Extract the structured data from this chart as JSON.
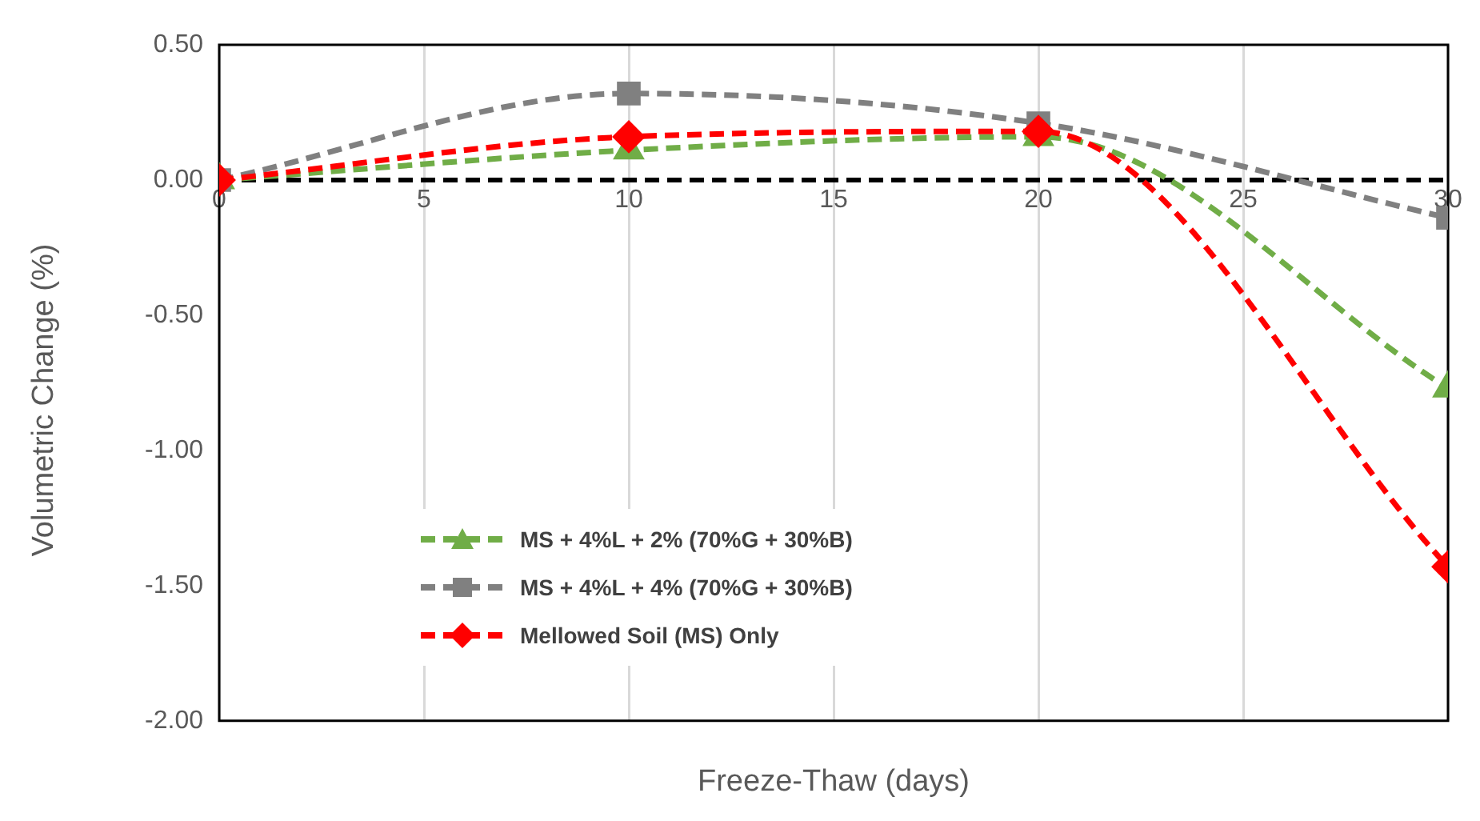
{
  "chart_data": {
    "type": "line",
    "xlabel": "Freeze-Thaw (days)",
    "ylabel": "Volumetric Change (%)",
    "x": [
      0,
      10,
      20,
      30
    ],
    "series": [
      {
        "name": "MS + 4%L + 2% (70%G + 30%B)",
        "color": "#70ad47",
        "values": [
          0,
          0.11,
          0.16,
          -0.77
        ],
        "marker": "triangle",
        "line_style": "dashed"
      },
      {
        "name": "MS + 4%L + 4% (70%G + 30%B)",
        "color": "#808080",
        "values": [
          0,
          0.32,
          0.21,
          -0.14
        ],
        "marker": "square",
        "line_style": "dashed"
      },
      {
        "name": "Mellowed Soil (MS) Only",
        "color": "#ff0000",
        "values": [
          0,
          0.16,
          0.18,
          -1.43
        ],
        "marker": "diamond",
        "line_style": "dashed"
      }
    ],
    "xlim": [
      0,
      30
    ],
    "xticks": [
      0,
      5,
      10,
      15,
      20,
      25,
      30
    ],
    "ylim": [
      -2,
      0.5
    ],
    "yticks": [
      {
        "value": -2,
        "label": "-2.00"
      },
      {
        "value": -1.5,
        "label": "-1.50"
      },
      {
        "value": -1,
        "label": "-1.00"
      },
      {
        "value": -0.5,
        "label": "-0.50"
      },
      {
        "value": 0,
        "label": "0.00"
      },
      {
        "value": 0.5,
        "label": "0.50"
      }
    ],
    "ref_lines": [
      {
        "axis": "y",
        "value": 0,
        "color": "#000000",
        "line_style": "dashed"
      }
    ],
    "grid": "x",
    "legend": "bottom left"
  }
}
